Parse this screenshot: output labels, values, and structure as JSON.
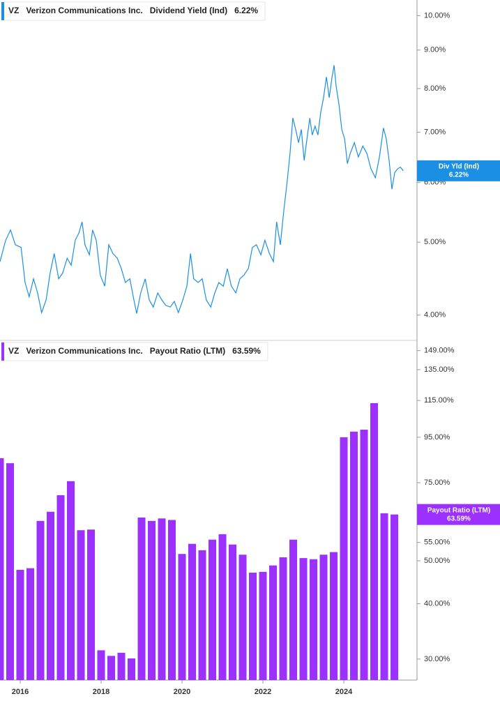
{
  "chart_data": [
    {
      "type": "line",
      "ticker": "VZ",
      "company": "Verizon Communications Inc.",
      "tag_label": "Div Yld (Ind)",
      "current": {
        "value": 6.22,
        "label": "6.22%"
      },
      "log_scale": true,
      "xlim": [
        2015.5,
        2025.81
      ],
      "ylim": [
        3.71,
        10.49
      ],
      "yticks": [
        {
          "value": 4,
          "label": "4.00%"
        },
        {
          "value": 5,
          "label": "5.00%"
        },
        {
          "value": 6,
          "label": "6.00%"
        },
        {
          "value": 7,
          "label": "7.00%"
        },
        {
          "value": 8,
          "label": "8.00%"
        },
        {
          "value": 9,
          "label": "9.00%"
        },
        {
          "value": 10,
          "label": "10.00%"
        }
      ],
      "x": [
        2015.5,
        2015.64,
        2015.76,
        2015.88,
        2016.02,
        2016.12,
        2016.22,
        2016.33,
        2016.43,
        2016.53,
        2016.64,
        2016.74,
        2016.84,
        2016.95,
        2017.05,
        2017.16,
        2017.26,
        2017.36,
        2017.45,
        2017.53,
        2017.6,
        2017.71,
        2017.79,
        2017.88,
        2017.98,
        2018.09,
        2018.19,
        2018.29,
        2018.4,
        2018.5,
        2018.6,
        2018.71,
        2018.81,
        2018.88,
        2018.98,
        2019.09,
        2019.19,
        2019.29,
        2019.4,
        2019.5,
        2019.6,
        2019.71,
        2019.81,
        2019.91,
        2020.02,
        2020.12,
        2020.21,
        2020.29,
        2020.4,
        2020.5,
        2020.6,
        2020.71,
        2020.81,
        2020.91,
        2021.02,
        2021.12,
        2021.22,
        2021.33,
        2021.43,
        2021.53,
        2021.64,
        2021.74,
        2021.84,
        2021.95,
        2022.05,
        2022.16,
        2022.26,
        2022.34,
        2022.43,
        2022.52,
        2022.6,
        2022.67,
        2022.74,
        2022.81,
        2022.88,
        2022.95,
        2023.02,
        2023.09,
        2023.16,
        2023.22,
        2023.29,
        2023.36,
        2023.43,
        2023.5,
        2023.57,
        2023.64,
        2023.71,
        2023.76,
        2023.81,
        2023.88,
        2023.95,
        2024.02,
        2024.09,
        2024.16,
        2024.26,
        2024.36,
        2024.47,
        2024.57,
        2024.67,
        2024.78,
        2024.88,
        2024.98,
        2025.05,
        2025.12,
        2025.19,
        2025.26,
        2025.33,
        2025.4,
        2025.47
      ],
      "series": [
        {
          "name": "Dividend Yield (Ind)",
          "color": "#1a8fe3",
          "values": [
            4.71,
            5.03,
            5.19,
            4.96,
            4.92,
            4.42,
            4.23,
            4.47,
            4.28,
            4.03,
            4.19,
            4.55,
            4.83,
            4.47,
            4.55,
            4.76,
            4.66,
            5.03,
            5.14,
            5.32,
            4.96,
            4.81,
            5.19,
            5.03,
            4.52,
            4.37,
            4.96,
            4.83,
            4.76,
            4.61,
            4.42,
            4.47,
            4.19,
            4.02,
            4.28,
            4.47,
            4.19,
            4.1,
            4.28,
            4.19,
            4.12,
            4.1,
            4.17,
            4.03,
            4.19,
            4.37,
            4.83,
            4.47,
            4.42,
            4.47,
            4.19,
            4.1,
            4.28,
            4.42,
            4.37,
            4.61,
            4.37,
            4.28,
            4.47,
            4.52,
            4.61,
            4.92,
            4.96,
            4.81,
            5.03,
            4.83,
            4.71,
            5.32,
            4.96,
            5.53,
            6.02,
            6.56,
            7.31,
            7.06,
            6.78,
            7.06,
            6.42,
            6.86,
            7.31,
            6.94,
            7.13,
            6.94,
            7.45,
            7.78,
            8.29,
            7.78,
            8.29,
            8.59,
            8.06,
            7.62,
            7.06,
            6.86,
            6.36,
            6.56,
            6.78,
            6.49,
            6.71,
            6.56,
            6.26,
            6.09,
            6.49,
            7.09,
            6.86,
            6.42,
            5.88,
            6.19,
            6.26,
            6.29,
            6.22
          ]
        }
      ]
    },
    {
      "type": "bar",
      "ticker": "VZ",
      "company": "Verizon Communications Inc.",
      "current": {
        "value": 63.59,
        "label": "63.59%"
      },
      "log_scale": true,
      "xlim": [
        2015.5,
        2025.81
      ],
      "ylim": [
        26.9,
        156
      ],
      "xticks": [
        2016,
        2018,
        2020,
        2022,
        2024
      ],
      "yticks": [
        {
          "value": 30,
          "label": "30.00%"
        },
        {
          "value": 40,
          "label": "40.00%"
        },
        {
          "value": 50,
          "label": "50.00%"
        },
        {
          "value": 55,
          "label": "55.00%"
        },
        {
          "value": 75,
          "label": "75.00%"
        },
        {
          "value": 95,
          "label": "95.00%"
        },
        {
          "value": 115,
          "label": "115.00%"
        },
        {
          "value": 135,
          "label": "135.00%"
        },
        {
          "value": 149,
          "label": "149.00%"
        }
      ],
      "x": [
        2015.5,
        2015.75,
        2016,
        2016.25,
        2016.5,
        2016.75,
        2017,
        2017.25,
        2017.5,
        2017.75,
        2018,
        2018.25,
        2018.5,
        2018.75,
        2019,
        2019.25,
        2019.5,
        2019.75,
        2020,
        2020.25,
        2020.5,
        2020.75,
        2021,
        2021.25,
        2021.5,
        2021.75,
        2022,
        2022.25,
        2022.5,
        2022.75,
        2023,
        2023.25,
        2023.5,
        2023.75,
        2024,
        2024.25,
        2024.5,
        2024.75,
        2025,
        2025.25
      ],
      "series": [
        {
          "name": "Payout Ratio (LTM)",
          "color": "#9b30ff",
          "values": [
            85.2,
            83.0,
            47.7,
            48.1,
            61.5,
            64.5,
            70.3,
            75.6,
            58.6,
            58.8,
            31.4,
            30.5,
            31.0,
            30.1,
            62.6,
            61.5,
            62.3,
            61.8,
            51.8,
            54.6,
            52.8,
            55.8,
            57.4,
            54.4,
            51.6,
            47.0,
            47.2,
            48.8,
            50.9,
            55.8,
            50.7,
            50.4,
            51.6,
            52.3,
            95.0,
            97.8,
            98.8,
            113.4,
            64.0,
            63.59
          ]
        }
      ]
    }
  ]
}
